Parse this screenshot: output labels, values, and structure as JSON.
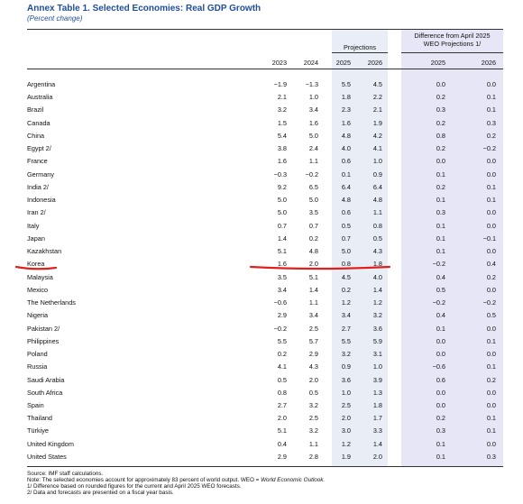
{
  "header": {
    "title": "Annex Table 1. Selected Economies: Real GDP Growth",
    "subtitle": "(Percent change)"
  },
  "table": {
    "group_headers": [
      "Projections",
      [
        "Difference from April 2025",
        "WEO Projections 1/"
      ]
    ],
    "columns": [
      "2023",
      "2024",
      "2025",
      "2026",
      "2025",
      "2026"
    ],
    "rows": [
      [
        "Argentina",
        "−1.9",
        "−1.3",
        "5.5",
        "4.5",
        "0.0",
        "0.0"
      ],
      [
        "Australia",
        "2.1",
        "1.0",
        "1.8",
        "2.2",
        "0.2",
        "0.1"
      ],
      [
        "Brazil",
        "3.2",
        "3.4",
        "2.3",
        "2.1",
        "0.3",
        "0.1"
      ],
      [
        "Canada",
        "1.5",
        "1.6",
        "1.6",
        "1.9",
        "0.2",
        "0.3"
      ],
      [
        "China",
        "5.4",
        "5.0",
        "4.8",
        "4.2",
        "0.8",
        "0.2"
      ],
      [
        "Egypt 2/",
        "3.8",
        "2.4",
        "4.0",
        "4.1",
        "0.2",
        "−0.2"
      ],
      [
        "France",
        "1.6",
        "1.1",
        "0.6",
        "1.0",
        "0.0",
        "0.0"
      ],
      [
        "Germany",
        "−0.3",
        "−0.2",
        "0.1",
        "0.9",
        "0.1",
        "0.0"
      ],
      [
        "India 2/",
        "9.2",
        "6.5",
        "6.4",
        "6.4",
        "0.2",
        "0.1"
      ],
      [
        "Indonesia",
        "5.0",
        "5.0",
        "4.8",
        "4.8",
        "0.1",
        "0.1"
      ],
      [
        "Iran 2/",
        "5.0",
        "3.5",
        "0.6",
        "1.1",
        "0.3",
        "0.0"
      ],
      [
        "Italy",
        "0.7",
        "0.7",
        "0.5",
        "0.8",
        "0.1",
        "0.0"
      ],
      [
        "Japan",
        "1.4",
        "0.2",
        "0.7",
        "0.5",
        "0.1",
        "−0.1"
      ],
      [
        "Kazakhstan",
        "5.1",
        "4.8",
        "5.0",
        "4.3",
        "0.1",
        "0.0"
      ],
      [
        "Korea",
        "1.6",
        "2.0",
        "0.8",
        "1.8",
        "−0.2",
        "0.4"
      ],
      [
        "Malaysia",
        "3.5",
        "5.1",
        "4.5",
        "4.0",
        "0.4",
        "0.2"
      ],
      [
        "Mexico",
        "3.4",
        "1.4",
        "0.2",
        "1.4",
        "0.5",
        "0.0"
      ],
      [
        "The Netherlands",
        "−0.6",
        "1.1",
        "1.2",
        "1.2",
        "−0.2",
        "−0.2"
      ],
      [
        "Nigeria",
        "2.9",
        "3.4",
        "3.4",
        "3.2",
        "0.4",
        "0.5"
      ],
      [
        "Pakistan 2/",
        "−0.2",
        "2.5",
        "2.7",
        "3.6",
        "0.1",
        "0.0"
      ],
      [
        "Philippines",
        "5.5",
        "5.7",
        "5.5",
        "5.9",
        "0.0",
        "0.1"
      ],
      [
        "Poland",
        "0.2",
        "2.9",
        "3.2",
        "3.1",
        "0.0",
        "0.0"
      ],
      [
        "Russia",
        "4.1",
        "4.3",
        "0.9",
        "1.0",
        "−0.6",
        "0.1"
      ],
      [
        "Saudi Arabia",
        "0.5",
        "2.0",
        "3.6",
        "3.9",
        "0.6",
        "0.2"
      ],
      [
        "South Africa",
        "0.8",
        "0.5",
        "1.0",
        "1.3",
        "0.0",
        "0.0"
      ],
      [
        "Spain",
        "2.7",
        "3.2",
        "2.5",
        "1.8",
        "0.0",
        "0.0"
      ],
      [
        "Thailand",
        "2.0",
        "2.5",
        "2.0",
        "1.7",
        "0.2",
        "0.1"
      ],
      [
        "Türkiye",
        "5.1",
        "3.2",
        "3.0",
        "3.3",
        "0.3",
        "0.1"
      ],
      [
        "United Kingdom",
        "0.4",
        "1.1",
        "1.2",
        "1.4",
        "0.1",
        "0.0"
      ],
      [
        "United States",
        "2.9",
        "2.8",
        "1.9",
        "2.0",
        "0.1",
        "0.3"
      ]
    ]
  },
  "footnotes": {
    "source": "Source: IMF staff calculations.",
    "note": {
      "text": "Note: The selected economies account for approximately 83 percent of world output. WEO = ",
      "emphasis": "World Economic Outlook."
    },
    "fn1": "1/ Difference based on rounded figures for the current and April 2025 WEO forecasts.",
    "fn2": "2/ Data and forecasts are presented on a fiscal year basis."
  }
}
